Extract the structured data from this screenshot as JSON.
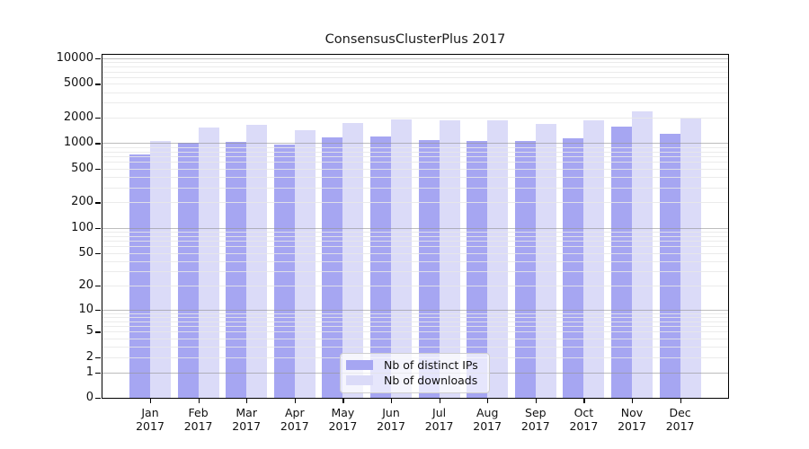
{
  "title": "ConsensusClusterPlus 2017",
  "legend": {
    "items": [
      {
        "label": "Nb of distinct IPs",
        "color": "#A6A6F2"
      },
      {
        "label": "Nb of downloads",
        "color": "#DBDBF8"
      }
    ]
  },
  "chart_data": {
    "type": "bar",
    "title": "ConsensusClusterPlus 2017",
    "categories": [
      "Jan 2017",
      "Feb 2017",
      "Mar 2017",
      "Apr 2017",
      "May 2017",
      "Jun 2017",
      "Jul 2017",
      "Aug 2017",
      "Sep 2017",
      "Oct 2017",
      "Nov 2017",
      "Dec 2017"
    ],
    "month_labels": [
      "Jan",
      "Feb",
      "Mar",
      "Apr",
      "May",
      "Jun",
      "Jul",
      "Aug",
      "Sep",
      "Oct",
      "Nov",
      "Dec"
    ],
    "year_label": "2017",
    "series": [
      {
        "name": "Nb of distinct IPs",
        "color": "#A6A6F2",
        "values": [
          730,
          1020,
          1040,
          960,
          1180,
          1190,
          1090,
          1060,
          1050,
          1150,
          1550,
          1290
        ]
      },
      {
        "name": "Nb of downloads",
        "color": "#DBDBF8",
        "values": [
          1070,
          1520,
          1650,
          1430,
          1730,
          1890,
          1860,
          1870,
          1690,
          1870,
          2400,
          1940
        ]
      }
    ],
    "y_ticks": [
      0,
      1,
      2,
      5,
      10,
      20,
      50,
      100,
      200,
      500,
      1000,
      2000,
      5000,
      10000
    ],
    "ylim": [
      0,
      10000
    ],
    "yscale": "pseudo-log (log10 of count+1)",
    "xlabel": "",
    "ylabel": "",
    "grid": true,
    "legend_position": "bottom-center"
  }
}
